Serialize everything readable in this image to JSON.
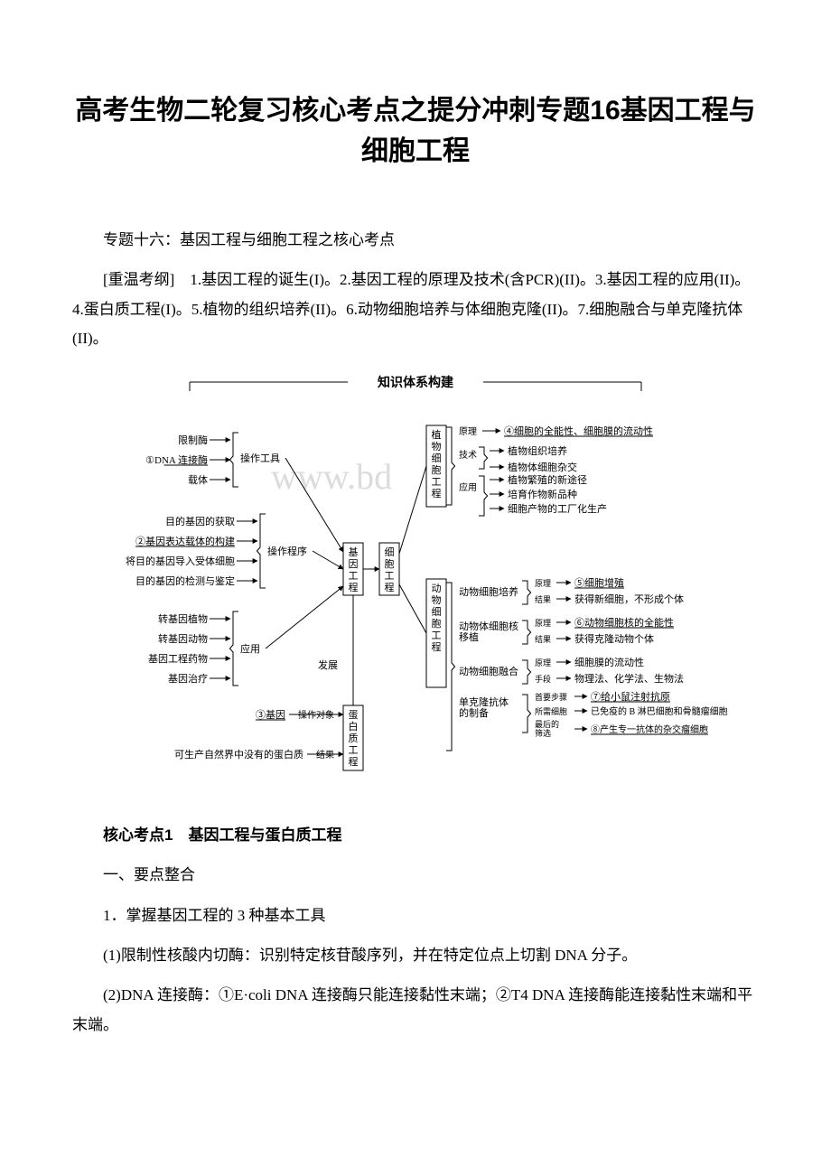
{
  "title": "高考生物二轮复习核心考点之提分冲刺专题16基因工程与细胞工程",
  "intro_section": "专题十六：基因工程与细胞工程之核心考点",
  "outline_para": "[重温考纲]　1.基因工程的诞生(I)。2.基因工程的原理及技术(含PCR)(II)。3.基因工程的应用(II)。4.蛋白质工程(I)。5.植物的组织培养(II)。6.动物细胞培养与体细胞克隆(II)。7.细胞融合与单克隆抗体(II)。",
  "core_point_heading": "核心考点1　基因工程与蛋白质工程",
  "sub1": "一、要点整合",
  "sub2": "1．掌握基因工程的 3 种基本工具",
  "p1": "(1)限制性核酸内切酶：识别特定核苷酸序列，并在特定位点上切割 DNA 分子。",
  "p2": "(2)DNA 连接酶：①E·coli DNA 连接酶只能连接黏性末端；②T4 DNA 连接酶能连接黏性末端和平末端。",
  "diagram": {
    "banner": "知识体系构建",
    "watermark": "www.bd",
    "font": {
      "main": 11,
      "small": 10
    },
    "colors": {
      "text": "#000000",
      "line": "#000000",
      "wm": "#dcdcdc",
      "underline": "#000000"
    },
    "left_tools": {
      "header": "操作工具",
      "items": [
        "限制酶",
        "①DNA 连接酶",
        "载体"
      ]
    },
    "left_procedure": {
      "header": "操作程序",
      "items": [
        "目的基因的获取",
        "②基因表达载体的构建",
        "将目的基因导入受体细胞",
        "目的基因的检测与鉴定"
      ]
    },
    "left_app": {
      "header": "应用",
      "items": [
        "转基因植物",
        "转基因动物",
        "基因工程药物",
        "基因治疗"
      ]
    },
    "left_dev": "发展",
    "gene_box": "基因工程",
    "cell_box": "细胞工程",
    "protein_box": "蛋白质工程",
    "protein_target": {
      "label": "操作对象",
      "value": "③基因"
    },
    "protein_result": {
      "label": "结果",
      "value": "可生产自然界中没有的蛋白质"
    },
    "plant_box": "植物细胞工程",
    "plant": {
      "principle_label": "原理",
      "principle": "④细胞的全能性、细胞膜的流动性",
      "tech_label": "技术",
      "techs": [
        "植物组织培养",
        "植物体细胞杂交"
      ],
      "app_label": "应用",
      "apps": [
        "植物繁殖的新途径",
        "培育作物新品种",
        "细胞产物的工厂化生产"
      ]
    },
    "animal_box": "动物细胞工程",
    "animal_culture": {
      "name": "动物细胞培养",
      "p_label": "原理",
      "p": "⑤细胞增殖",
      "r_label": "结果",
      "r": "获得新细胞，不形成个体"
    },
    "nuclear": {
      "name": "动物体细胞核移植",
      "p_label": "原理",
      "p": "⑥动物细胞核的全能性",
      "r_label": "结果",
      "r": "获得克隆动物个体"
    },
    "fusion": {
      "name": "动物细胞融合",
      "p_label": "原理",
      "p": "细胞膜的流动性",
      "m_label": "手段",
      "m": "物理法、化学法、生物法"
    },
    "mono": {
      "name": "单克隆抗体的制备",
      "step1_label": "首要步骤",
      "step1": "⑦给小鼠注射抗原",
      "cells_label": "所需细胞",
      "cells": "已免疫的 B 淋巴细胞和骨髓瘤细胞",
      "final_label": "最后的筛选",
      "final": "⑧产生专一抗体的杂交瘤细胞"
    }
  }
}
